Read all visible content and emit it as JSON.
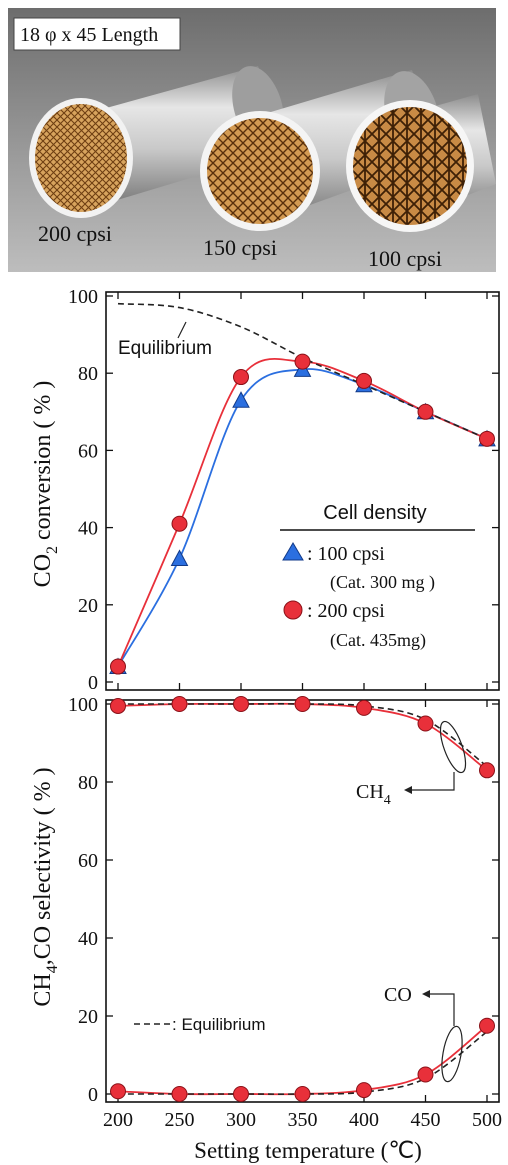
{
  "photo": {
    "size_label": "18 φ x 45 Length",
    "samples": [
      {
        "label": "200 cpsi"
      },
      {
        "label": "150 cpsi"
      },
      {
        "label": "100 cpsi"
      }
    ]
  },
  "colors": {
    "blue_series": "#2b6fe0",
    "red_series": "#e8303a",
    "equilibrium": "#222222"
  },
  "chart_data": [
    {
      "type": "line",
      "ylabel": "CO2 conversion (%)",
      "ylabel_main": "CO",
      "ylabel_sub": "2",
      "ylabel_rest": " conversion ( % )",
      "xlim": [
        200,
        500
      ],
      "ylim": [
        0,
        100
      ],
      "xticks": [
        200,
        250,
        300,
        350,
        400,
        450,
        500
      ],
      "yticks": [
        0,
        20,
        40,
        60,
        80,
        100
      ],
      "legend_title": "Cell density",
      "legend_placement": "bottom-right",
      "equilibrium_label": "Equilibrium",
      "series": [
        {
          "name": ": 100 cpsi",
          "note": "(Cat. 300 mg )",
          "marker": "triangle",
          "color": "#2b6fe0",
          "x": [
            200,
            250,
            300,
            350,
            400,
            450,
            500
          ],
          "y": [
            4,
            32,
            73,
            81,
            77,
            70,
            63
          ]
        },
        {
          "name": ": 200 cpsi",
          "note": "(Cat. 435mg)",
          "marker": "circle",
          "color": "#e8303a",
          "x": [
            200,
            250,
            300,
            350,
            400,
            450,
            500
          ],
          "y": [
            4,
            41,
            79,
            83,
            78,
            70,
            63
          ]
        },
        {
          "marker": "none",
          "style": "dashed",
          "color": "#222222",
          "x": [
            200,
            250,
            300,
            350,
            400,
            450,
            500
          ],
          "y": [
            98,
            97,
            92,
            84,
            77,
            70,
            63
          ]
        }
      ]
    },
    {
      "type": "line",
      "xlabel": "Setting temperature (℃)",
      "ylabel_a": "CH",
      "ylabel_a_sub": "4",
      "ylabel_rest": ",CO selectivity ( % )",
      "xlim": [
        200,
        500
      ],
      "ylim": [
        0,
        100
      ],
      "xticks": [
        200,
        250,
        300,
        350,
        400,
        450,
        500
      ],
      "yticks": [
        0,
        20,
        40,
        60,
        80,
        100
      ],
      "legend_text": ": Equilibrium",
      "legend_placement": "bottom-left",
      "annotation_ch4_main": "CH",
      "annotation_ch4_sub": "4",
      "annotation_co": "CO",
      "series": [
        {
          "marker": "circle",
          "color": "#e8303a",
          "x": [
            200,
            250,
            300,
            350,
            400,
            450,
            500
          ],
          "y": [
            99.5,
            100,
            100,
            100,
            99,
            95,
            83
          ]
        },
        {
          "marker": "circle",
          "color": "#e8303a",
          "x": [
            200,
            250,
            300,
            350,
            400,
            450,
            500
          ],
          "y": [
            0.7,
            0,
            0,
            0,
            1,
            5,
            17.5
          ]
        },
        {
          "marker": "none",
          "style": "dashed",
          "color": "#222222",
          "x": [
            200,
            250,
            300,
            350,
            400,
            450,
            500
          ],
          "y": [
            100,
            100,
            100,
            100,
            99.5,
            96,
            84
          ]
        },
        {
          "marker": "none",
          "style": "dashed",
          "color": "#222222",
          "x": [
            200,
            250,
            300,
            350,
            400,
            450,
            500
          ],
          "y": [
            0,
            0,
            0,
            0,
            0.5,
            4,
            16
          ]
        }
      ]
    }
  ]
}
